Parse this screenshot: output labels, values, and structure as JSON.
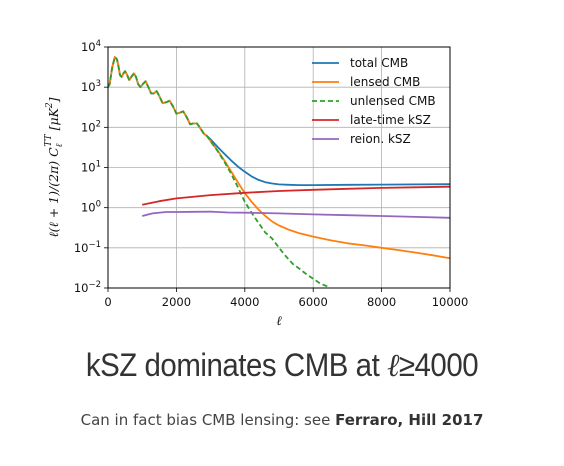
{
  "chart_data": {
    "type": "line",
    "xlabel": "ℓ",
    "ylabel": "ℓ(ℓ + 1)/(2π) C",
    "ylabel_sub": "ℓ",
    "ylabel_sup": "TT",
    "ylabel_unit": " [μK",
    "ylabel_unit_sup": "2",
    "ylabel_unit_end": "]",
    "xlim": [
      0,
      10000
    ],
    "ylim": [
      0.01,
      10000
    ],
    "yscale": "log",
    "grid": true,
    "legend_position": "top-right",
    "x_ticks": [
      0,
      2000,
      4000,
      6000,
      8000,
      10000
    ],
    "x_tick_labels": [
      "0",
      "2000",
      "4000",
      "6000",
      "8000",
      "10000"
    ],
    "y_ticks": [
      {
        "value": 10000,
        "base": "10",
        "exp": "4"
      },
      {
        "value": 1000,
        "base": "10",
        "exp": "3"
      },
      {
        "value": 100,
        "base": "10",
        "exp": "2"
      },
      {
        "value": 10,
        "base": "10",
        "exp": "1"
      },
      {
        "value": 1,
        "base": "10",
        "exp": "0"
      },
      {
        "value": 0.1,
        "base": "10",
        "exp": "−1"
      },
      {
        "value": 0.01,
        "base": "10",
        "exp": "−2"
      }
    ],
    "series": [
      {
        "name": "total CMB",
        "color": "#1f77b4",
        "dash": "none",
        "x": [
          0,
          50,
          120,
          200,
          260,
          300,
          350,
          400,
          450,
          500,
          560,
          620,
          700,
          760,
          820,
          880,
          950,
          1020,
          1100,
          1180,
          1260,
          1340,
          1420,
          1500,
          1600,
          1700,
          1800,
          1900,
          2000,
          2100,
          2200,
          2300,
          2400,
          2500,
          2600,
          2700,
          2800,
          2900,
          3000,
          3200,
          3400,
          3600,
          3800,
          4000,
          4200,
          4400,
          4600,
          4800,
          5000,
          5300,
          5600,
          6000,
          7000,
          8000,
          9000,
          10000
        ],
        "y": [
          1000,
          1200,
          3000,
          5600,
          5000,
          3500,
          2000,
          1800,
          2200,
          2500,
          2000,
          1500,
          1900,
          2200,
          1800,
          1200,
          1000,
          1200,
          1400,
          1000,
          700,
          700,
          800,
          600,
          400,
          420,
          460,
          330,
          220,
          230,
          250,
          180,
          120,
          125,
          125,
          95,
          70,
          60,
          50,
          33,
          22,
          15,
          10.5,
          7.8,
          6.0,
          4.9,
          4.3,
          4.0,
          3.8,
          3.7,
          3.65,
          3.65,
          3.7,
          3.75,
          3.8,
          3.85
        ]
      },
      {
        "name": "lensed CMB",
        "color": "#ff7f0e",
        "dash": "none",
        "x": [
          0,
          50,
          120,
          200,
          260,
          300,
          350,
          400,
          450,
          500,
          560,
          620,
          700,
          760,
          820,
          880,
          950,
          1020,
          1100,
          1180,
          1260,
          1340,
          1420,
          1500,
          1600,
          1700,
          1800,
          1900,
          2000,
          2100,
          2200,
          2300,
          2400,
          2500,
          2600,
          2700,
          2800,
          2900,
          3000,
          3200,
          3400,
          3600,
          3800,
          4000,
          4200,
          4400,
          4600,
          4800,
          5000,
          5300,
          5600,
          6000,
          6500,
          7000,
          7500,
          8000,
          8500,
          9000,
          9500,
          10000
        ],
        "y": [
          1000,
          1200,
          3000,
          5600,
          5000,
          3500,
          2000,
          1800,
          2200,
          2500,
          2000,
          1500,
          1900,
          2200,
          1800,
          1200,
          1000,
          1200,
          1400,
          1000,
          700,
          700,
          800,
          600,
          400,
          420,
          460,
          330,
          220,
          230,
          250,
          180,
          120,
          125,
          125,
          95,
          70,
          60,
          45,
          27,
          15,
          8,
          4.2,
          2.3,
          1.4,
          0.9,
          0.62,
          0.45,
          0.36,
          0.28,
          0.23,
          0.19,
          0.155,
          0.13,
          0.115,
          0.1,
          0.088,
          0.076,
          0.065,
          0.055
        ]
      },
      {
        "name": "unlensed CMB",
        "color": "#2ca02c",
        "dash": "5,3",
        "x": [
          0,
          50,
          120,
          200,
          260,
          300,
          350,
          400,
          450,
          500,
          560,
          620,
          700,
          760,
          820,
          880,
          950,
          1020,
          1100,
          1180,
          1260,
          1340,
          1420,
          1500,
          1600,
          1700,
          1800,
          1900,
          2000,
          2100,
          2200,
          2300,
          2400,
          2500,
          2600,
          2700,
          2800,
          2900,
          3000,
          3200,
          3400,
          3600,
          3800,
          4000,
          4200,
          4400,
          4600,
          4800,
          5000,
          5200,
          5400,
          5600,
          5800,
          6000,
          6200,
          6400,
          6600
        ],
        "y": [
          1000,
          1200,
          3000,
          5600,
          5000,
          3500,
          2000,
          1800,
          2200,
          2500,
          2000,
          1500,
          1900,
          2200,
          1800,
          1200,
          1000,
          1200,
          1400,
          1000,
          700,
          700,
          800,
          600,
          400,
          420,
          460,
          330,
          220,
          230,
          250,
          180,
          120,
          125,
          125,
          95,
          70,
          60,
          45,
          26,
          14,
          7,
          3.2,
          1.4,
          0.75,
          0.42,
          0.24,
          0.17,
          0.1,
          0.062,
          0.04,
          0.03,
          0.022,
          0.017,
          0.013,
          0.011,
          0.0085
        ]
      },
      {
        "name": "late-time kSZ",
        "color": "#d62728",
        "dash": "none",
        "x": [
          1000,
          1500,
          2000,
          3000,
          4000,
          5000,
          6000,
          7000,
          8000,
          9000,
          10000
        ],
        "y": [
          1.18,
          1.45,
          1.7,
          2.05,
          2.35,
          2.6,
          2.78,
          2.95,
          3.1,
          3.22,
          3.33
        ]
      },
      {
        "name": "reion. kSZ",
        "color": "#9467bd",
        "dash": "none",
        "x": [
          1000,
          1300,
          1700,
          2000,
          2500,
          3000,
          3500,
          4000,
          5000,
          6000,
          7000,
          8000,
          9000,
          10000
        ],
        "y": [
          0.62,
          0.72,
          0.78,
          0.78,
          0.79,
          0.8,
          0.76,
          0.75,
          0.72,
          0.68,
          0.65,
          0.62,
          0.59,
          0.56
        ]
      }
    ]
  },
  "headline": {
    "text": "kSZ dominates CMB at ",
    "ell": "ℓ",
    "rest": "≥4000"
  },
  "caption": {
    "text": "Can in fact bias CMB lensing: see ",
    "bold": "Ferraro, Hill 2017"
  }
}
